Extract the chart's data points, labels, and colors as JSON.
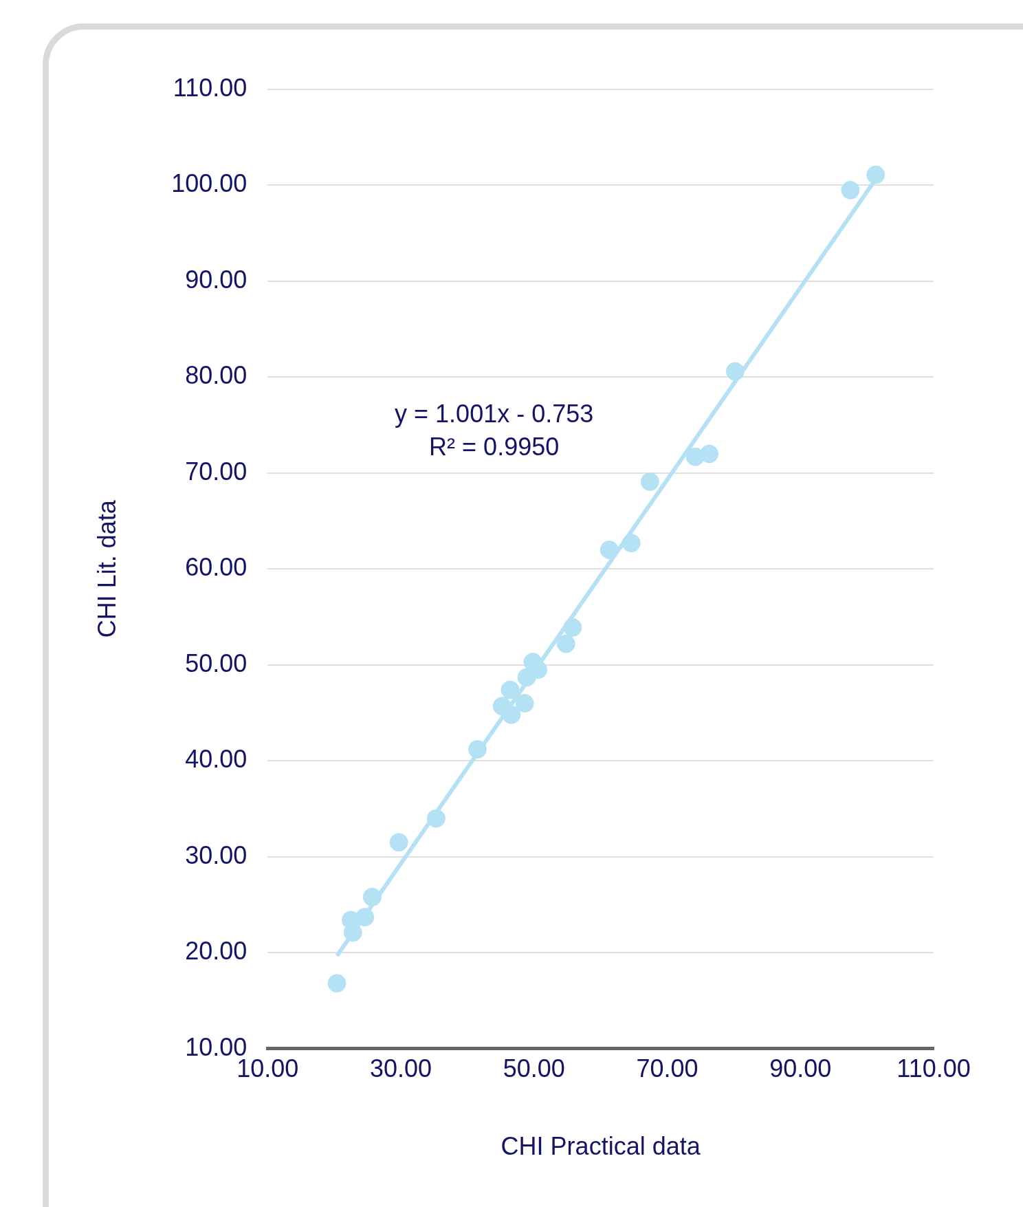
{
  "chart_data": {
    "type": "scatter",
    "xlabel": "CHI Practical data",
    "ylabel": "CHI Lit. data",
    "annotations": [
      "y = 1.001x - 0.753\nR² = 0.9950"
    ],
    "xlim": [
      10,
      110
    ],
    "xticks": [
      {
        "value": 10,
        "label": "10.00"
      },
      {
        "value": 30,
        "label": "30.00"
      },
      {
        "value": 50,
        "label": "50.00"
      },
      {
        "value": 70,
        "label": "70.00"
      },
      {
        "value": 90,
        "label": "90.00"
      },
      {
        "value": 110,
        "label": "110.00"
      }
    ],
    "ylim": [
      10,
      110
    ],
    "yticks": [
      {
        "value": 10,
        "label": "10.00"
      },
      {
        "value": 20,
        "label": "20.00"
      },
      {
        "value": 30,
        "label": "30.00"
      },
      {
        "value": 40,
        "label": "40.00"
      },
      {
        "value": 50,
        "label": "50.00"
      },
      {
        "value": 60,
        "label": "60.00"
      },
      {
        "value": 70,
        "label": "70.00"
      },
      {
        "value": 80,
        "label": "80.00"
      },
      {
        "value": 90,
        "label": "90.00"
      },
      {
        "value": 100,
        "label": "100.00"
      },
      {
        "value": 110,
        "label": "110.00"
      }
    ],
    "grid": "y",
    "legend": false,
    "marker": "circle",
    "series": [
      {
        "color": "#b5e1f5",
        "x": [
          20.4,
          22.5,
          22.8,
          24.6,
          25.7,
          29.7,
          35.3,
          41.5,
          45.2,
          46.4,
          46.6,
          48.6,
          48.9,
          49.8,
          50.6,
          54.8,
          55.8,
          61.3,
          64.6,
          67.4,
          74.2,
          76.3,
          80.2,
          97.5,
          101.3
        ],
        "values": [
          16.8,
          23.4,
          22.1,
          23.7,
          25.8,
          31.5,
          34.0,
          41.2,
          45.7,
          47.4,
          44.8,
          46.0,
          48.7,
          50.3,
          49.5,
          52.2,
          53.9,
          62.0,
          62.7,
          69.1,
          71.7,
          72.0,
          80.6,
          99.5,
          101.1
        ]
      },
      {
        "type": "line",
        "color": "#b5e1f5",
        "marker": "none",
        "line_style": "solid",
        "x": [
          20.4,
          101.3
        ],
        "values": [
          19.67,
          100.65
        ]
      }
    ]
  }
}
